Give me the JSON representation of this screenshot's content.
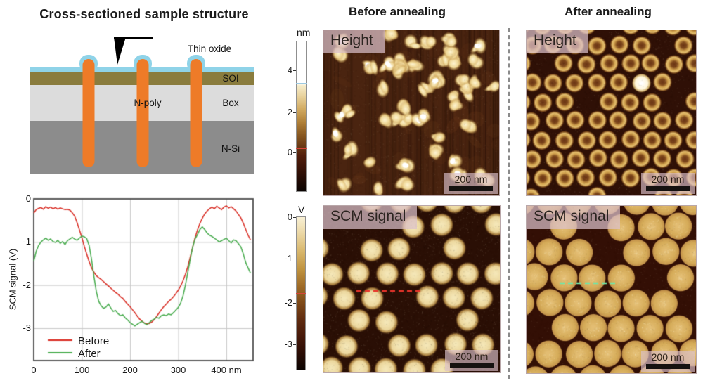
{
  "diagram": {
    "title": "Cross-sectioned sample structure",
    "labels": {
      "thin_oxide": "Thin oxide",
      "soi": "SOI",
      "box": "Box",
      "npoly": "N-poly",
      "nsi": "N-Si"
    },
    "colors": {
      "oxide": "#8fd3e8",
      "soi": "#8a7c3e",
      "box": "#dcdcdc",
      "nsi": "#8c8c8c",
      "pillar": "#ee7b28",
      "tip": "#000000"
    }
  },
  "chart_data": {
    "type": "line",
    "title": "",
    "xlabel": "",
    "ylabel": "SCM signal (V)",
    "x_unit": "nm",
    "xlim": [
      0,
      455
    ],
    "ylim": [
      -3.75,
      0
    ],
    "grid": true,
    "legend_position": "bottom-left",
    "xticks": [
      0,
      100,
      200,
      300,
      400
    ],
    "xtick_labels": [
      "0",
      "100",
      "200",
      "300",
      "400 nm"
    ],
    "yticks": [
      0,
      -1,
      -2,
      -3
    ],
    "ytick_labels": [
      "0",
      "-1",
      "-2",
      "-3"
    ],
    "x_start": 0,
    "x_step": 5,
    "series": [
      {
        "name": "Before",
        "color": "#d92c23",
        "y": [
          -0.33,
          -0.25,
          -0.22,
          -0.2,
          -0.24,
          -0.18,
          -0.22,
          -0.19,
          -0.23,
          -0.2,
          -0.24,
          -0.21,
          -0.23,
          -0.25,
          -0.24,
          -0.26,
          -0.32,
          -0.4,
          -0.55,
          -0.72,
          -0.9,
          -1.1,
          -1.28,
          -1.45,
          -1.6,
          -1.7,
          -1.78,
          -1.83,
          -1.87,
          -1.92,
          -1.97,
          -2.02,
          -2.07,
          -2.12,
          -2.17,
          -2.21,
          -2.27,
          -2.31,
          -2.38,
          -2.44,
          -2.5,
          -2.57,
          -2.64,
          -2.72,
          -2.79,
          -2.84,
          -2.88,
          -2.9,
          -2.89,
          -2.86,
          -2.8,
          -2.73,
          -2.65,
          -2.57,
          -2.5,
          -2.44,
          -2.38,
          -2.33,
          -2.27,
          -2.2,
          -2.12,
          -2.02,
          -1.9,
          -1.75,
          -1.57,
          -1.35,
          -1.12,
          -0.9,
          -0.72,
          -0.57,
          -0.45,
          -0.35,
          -0.28,
          -0.23,
          -0.19,
          -0.23,
          -0.17,
          -0.21,
          -0.25,
          -0.19,
          -0.16,
          -0.21,
          -0.18,
          -0.23,
          -0.28,
          -0.36,
          -0.44,
          -0.56,
          -0.7,
          -0.84,
          -0.95
        ]
      },
      {
        "name": "After",
        "color": "#46ab4c",
        "y": [
          -1.45,
          -1.22,
          -1.08,
          -1.0,
          -0.95,
          -0.91,
          -0.96,
          -0.93,
          -0.99,
          -1.01,
          -0.96,
          -1.03,
          -0.99,
          -1.06,
          -0.97,
          -0.93,
          -0.89,
          -0.93,
          -0.96,
          -0.91,
          -0.86,
          -0.88,
          -0.92,
          -1.08,
          -1.4,
          -1.8,
          -2.15,
          -2.38,
          -2.48,
          -2.54,
          -2.51,
          -2.44,
          -2.53,
          -2.61,
          -2.59,
          -2.66,
          -2.71,
          -2.69,
          -2.76,
          -2.81,
          -2.87,
          -2.91,
          -2.95,
          -2.91,
          -2.87,
          -2.84,
          -2.89,
          -2.92,
          -2.87,
          -2.82,
          -2.79,
          -2.75,
          -2.77,
          -2.71,
          -2.69,
          -2.71,
          -2.67,
          -2.69,
          -2.64,
          -2.58,
          -2.52,
          -2.42,
          -2.25,
          -2.0,
          -1.7,
          -1.4,
          -1.12,
          -0.93,
          -0.83,
          -0.71,
          -0.65,
          -0.71,
          -0.79,
          -0.84,
          -0.87,
          -0.91,
          -0.95,
          -1.0,
          -0.97,
          -0.94,
          -0.91,
          -0.97,
          -1.02,
          -0.95,
          -0.97,
          -1.04,
          -1.11,
          -1.27,
          -1.47,
          -1.6,
          -1.72
        ]
      }
    ]
  },
  "columns": {
    "before": {
      "title": "Before annealing"
    },
    "after": {
      "title": "After annealing"
    }
  },
  "colorbar_nm": {
    "unit": "nm",
    "ticks": [
      {
        "label": "4",
        "pct": 19.5
      },
      {
        "label": "2",
        "pct": 47.4
      },
      {
        "label": "0",
        "pct": 74.0
      }
    ],
    "marker_blue_pct": 28.4,
    "marker_red_pct": 71.0,
    "marker_blue_color": "#9cc9e2",
    "marker_red_color": "#d5453a"
  },
  "colorbar_v": {
    "unit": "V",
    "ticks": [
      {
        "label": "0",
        "pct": 0.5
      },
      {
        "label": "-1",
        "pct": 27.4
      },
      {
        "label": "-2",
        "pct": 56.2
      },
      {
        "label": "-3",
        "pct": 83.1
      }
    ],
    "marker_red_pct": 50.2,
    "marker_red_color": "#d5453a"
  },
  "panels": {
    "before_height": {
      "label": "Height",
      "scalebar": "200 nm",
      "bg": "#4a2410"
    },
    "before_scm": {
      "label": "SCM signal",
      "scalebar": "200 nm",
      "bg": "#2a0f05",
      "profile_line_color": "#e8332a"
    },
    "after_height": {
      "label": "Height",
      "scalebar": "200 nm",
      "bg": "#2f1006"
    },
    "after_scm": {
      "label": "SCM signal",
      "scalebar": "200 nm",
      "bg": "#330f05",
      "profile_line_color": "#6fe6a8"
    }
  }
}
